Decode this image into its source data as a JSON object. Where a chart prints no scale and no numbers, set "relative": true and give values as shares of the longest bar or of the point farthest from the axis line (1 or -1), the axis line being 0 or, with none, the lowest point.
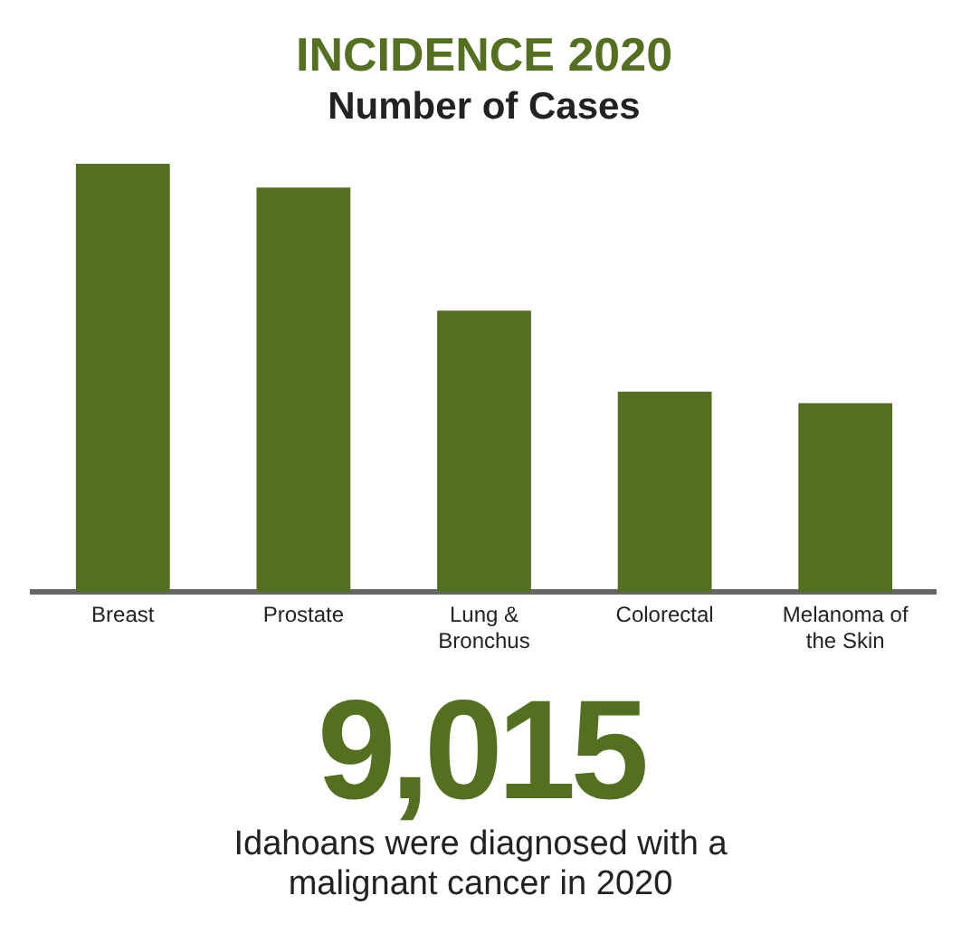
{
  "chart_data": {
    "type": "bar",
    "title": "INCIDENCE 2020",
    "subtitle": "Number of Cases",
    "categories": [
      "Breast",
      "Prostate",
      "Lung & Bronchus",
      "Colorectal",
      "Melanoma of the Skin"
    ],
    "values": [
      1,
      0.944,
      0.657,
      0.468,
      0.441
    ],
    "color": "#52701f",
    "relative": true,
    "grid": false,
    "legend": false,
    "annotations": [
      "9,015",
      "Idahoans were diagnosed with a malignant cancer in 2020"
    ]
  }
}
